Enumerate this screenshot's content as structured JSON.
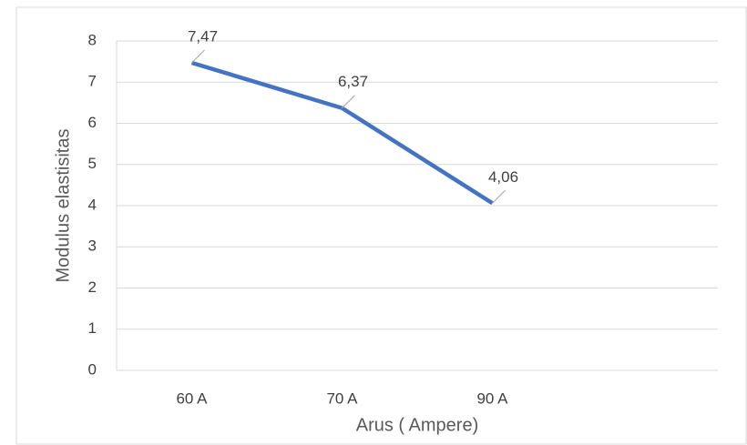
{
  "chart_data": {
    "type": "line",
    "x_label": "Arus ( Ampere)",
    "y_label": "Modulus elastisitas",
    "categories": [
      "60 A",
      "70 A",
      "90 A",
      null
    ],
    "values": [
      7.47,
      6.37,
      4.06,
      null
    ],
    "value_labels": [
      "7,47",
      "6,37",
      "4,06",
      null
    ],
    "color": "#4472c4",
    "ylim": [
      0,
      8
    ],
    "yticks": [
      0,
      1,
      2,
      3,
      4,
      5,
      6,
      7,
      8
    ],
    "grid": true
  }
}
